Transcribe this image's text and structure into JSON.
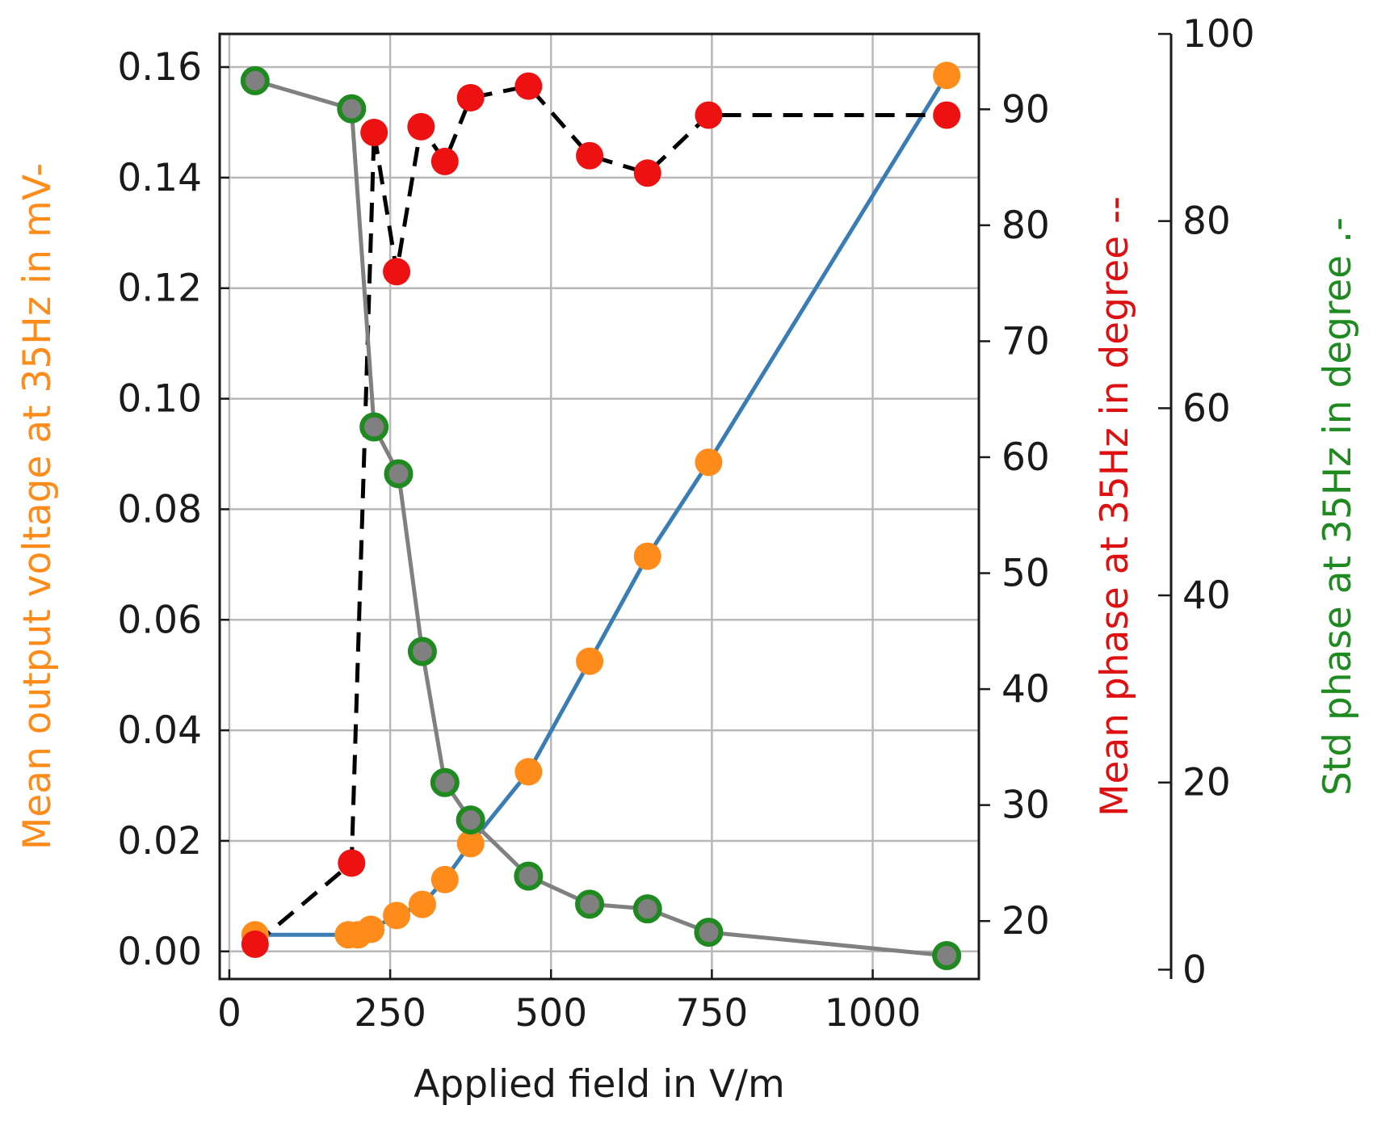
{
  "chart_data": {
    "type": "line",
    "xlabel": "Applied field in V/m",
    "ylabel_left": "Mean output voltage at 35Hz in mV-",
    "ylabel_right1": "Mean phase at 35Hz in degree --",
    "ylabel_right2": "Std phase at 35Hz in degree .-",
    "xlim": [
      -15,
      1165
    ],
    "x_ticks": [
      0,
      250,
      500,
      750,
      1000
    ],
    "y_left": {
      "lim": [
        -0.005,
        0.166
      ],
      "ticks": [
        0.0,
        0.02,
        0.04,
        0.06,
        0.08,
        0.1,
        0.12,
        0.14,
        0.16
      ],
      "tick_labels": [
        "0.00",
        "0.02",
        "0.04",
        "0.06",
        "0.08",
        "0.10",
        "0.12",
        "0.14",
        "0.16"
      ]
    },
    "y_right1": {
      "lim": [
        15,
        96.5
      ],
      "ticks": [
        20,
        30,
        40,
        50,
        60,
        70,
        80,
        90
      ],
      "tick_labels": [
        "20",
        "30",
        "40",
        "50",
        "60",
        "70",
        "80",
        "90"
      ]
    },
    "y_right2": {
      "lim": [
        -1,
        100
      ],
      "ticks": [
        0,
        20,
        40,
        60,
        80,
        100
      ],
      "tick_labels": [
        "0",
        "20",
        "40",
        "60",
        "80",
        "100"
      ]
    },
    "grid": true,
    "series": [
      {
        "name": "Mean output voltage",
        "axis": "left",
        "line_color": "#3a7db5",
        "marker_color": "#ff8c1a",
        "line_style": "solid",
        "x": [
          40,
          185,
          200,
          220,
          260,
          300,
          335,
          375,
          465,
          560,
          650,
          745,
          1115
        ],
        "values": [
          0.003,
          0.003,
          0.003,
          0.004,
          0.0065,
          0.0085,
          0.013,
          0.0195,
          0.0325,
          0.0525,
          0.0715,
          0.0885,
          0.1585
        ]
      },
      {
        "name": "Mean phase",
        "axis": "right1",
        "line_color": "#000000",
        "marker_color": "#ee1111",
        "line_style": "dashed",
        "x": [
          40,
          190,
          225,
          260,
          298,
          335,
          375,
          465,
          560,
          650,
          745,
          1115
        ],
        "values": [
          18,
          25,
          88,
          76,
          88.5,
          85.5,
          91,
          92,
          86,
          84.5,
          89.5,
          89.5
        ]
      },
      {
        "name": "Std phase",
        "axis": "right2",
        "line_color": "#808080",
        "marker_color": "#808080",
        "marker_edge": "#1f8a1f",
        "line_style": "solid",
        "x": [
          40,
          190,
          225,
          263,
          300,
          335,
          375,
          465,
          560,
          650,
          745,
          1115
        ],
        "values": [
          95,
          92,
          58,
          53,
          34,
          20,
          16,
          10,
          7,
          6.5,
          4,
          1.5
        ]
      }
    ]
  }
}
